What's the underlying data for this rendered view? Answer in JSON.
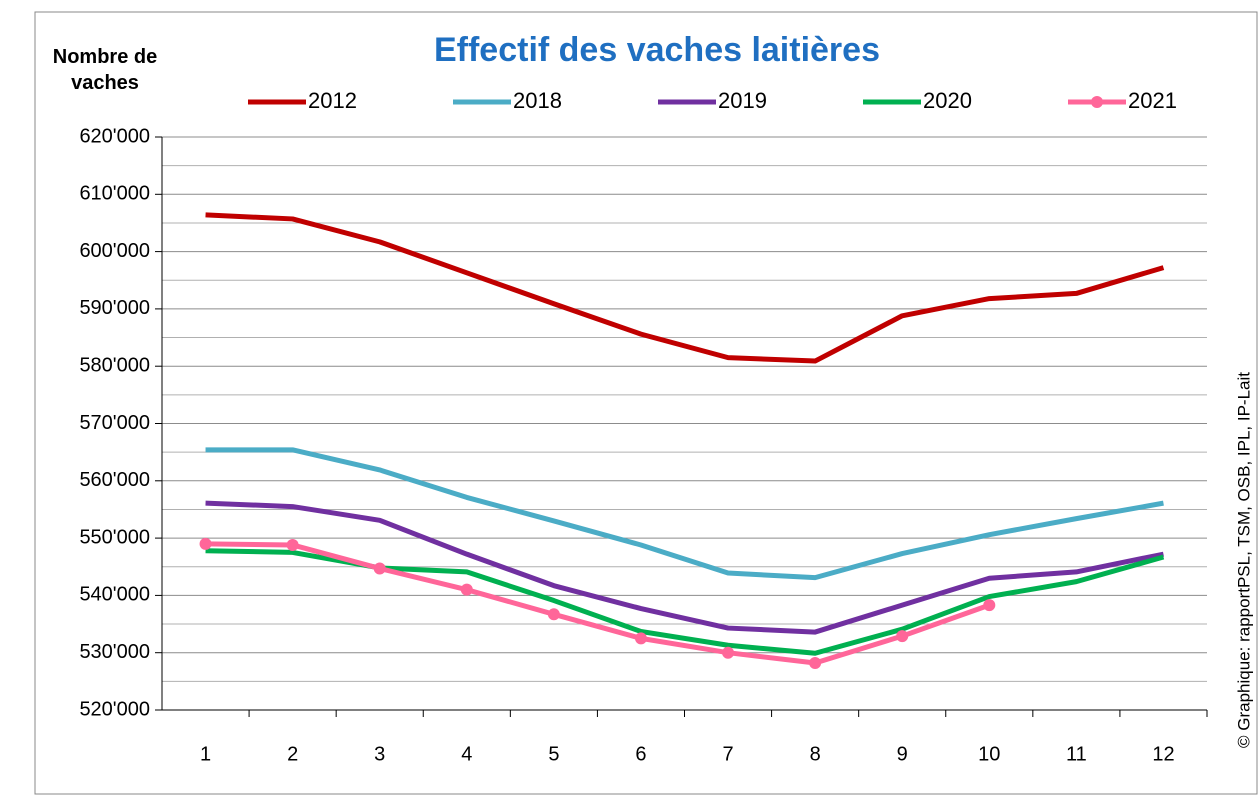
{
  "chart_data": {
    "type": "line",
    "title": "Effectif des vaches laitières",
    "y_label": "Nombre de vaches",
    "source": "© Graphique: rapportPSL, TSM, OSB, IPL, IP-Lait",
    "categories": [
      "1",
      "2",
      "3",
      "4",
      "5",
      "6",
      "7",
      "8",
      "9",
      "10",
      "11",
      "12"
    ],
    "ylim": [
      520000,
      620000
    ],
    "yticks": [
      {
        "value": 520000,
        "label": "520'000"
      },
      {
        "value": 530000,
        "label": "530'000"
      },
      {
        "value": 540000,
        "label": "540'000"
      },
      {
        "value": 550000,
        "label": "550'000"
      },
      {
        "value": 560000,
        "label": "560'000"
      },
      {
        "value": 570000,
        "label": "570'000"
      },
      {
        "value": 580000,
        "label": "580'000"
      },
      {
        "value": 590000,
        "label": "590'000"
      },
      {
        "value": 600000,
        "label": "600'000"
      },
      {
        "value": 610000,
        "label": "610'000"
      },
      {
        "value": 620000,
        "label": "620'000"
      }
    ],
    "yticks_minor": [
      525000,
      535000,
      545000,
      555000,
      565000,
      575000,
      585000,
      595000,
      605000,
      615000
    ],
    "grid": true,
    "legend": "top",
    "series": [
      {
        "name": "2012",
        "color": "#c00000",
        "values": [
          606400,
          605700,
          601700,
          596300,
          590900,
          585600,
          581500,
          580900,
          588800,
          591800,
          592700,
          597200
        ]
      },
      {
        "name": "2018",
        "color": "#4bacc6",
        "values": [
          565400,
          565400,
          561900,
          557100,
          553000,
          548800,
          543900,
          543100,
          547300,
          550600,
          553400,
          556100
        ]
      },
      {
        "name": "2019",
        "color": "#7030a0",
        "values": [
          556100,
          555500,
          553100,
          547200,
          541700,
          537700,
          534300,
          533600,
          538300,
          543000,
          544100,
          547200
        ]
      },
      {
        "name": "2020",
        "color": "#00b050",
        "values": [
          547800,
          547500,
          544800,
          544100,
          539100,
          533700,
          531300,
          529900,
          534100,
          539800,
          542400,
          546700
        ]
      },
      {
        "name": "2021",
        "color": "#ff6699",
        "markers": true,
        "values": [
          549000,
          548800,
          544700,
          541000,
          536700,
          532500,
          530000,
          528200,
          532900,
          538300,
          null,
          null
        ]
      }
    ]
  }
}
